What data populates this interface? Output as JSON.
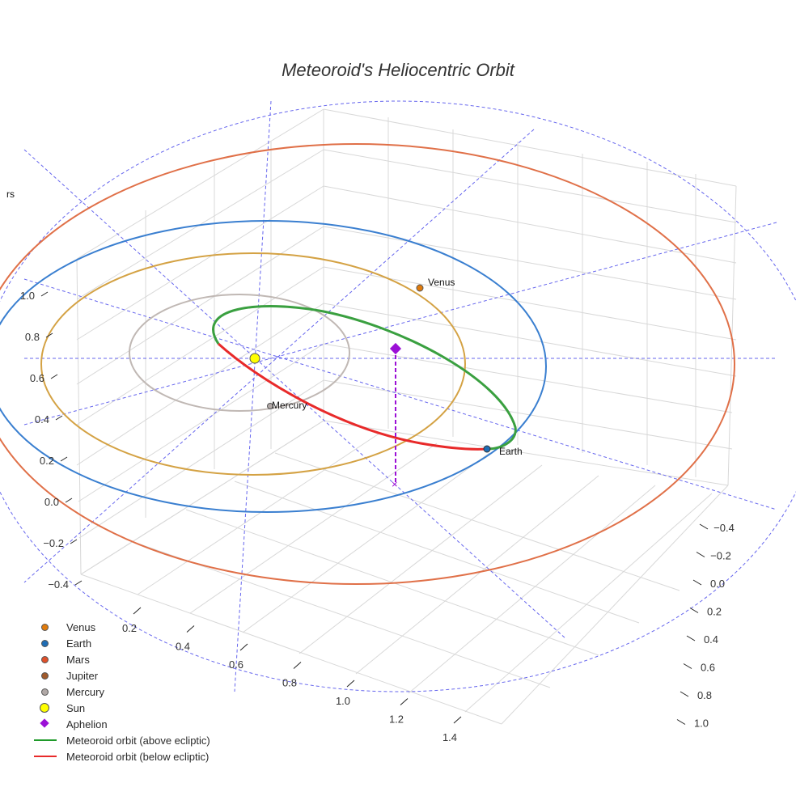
{
  "chart_data": {
    "type": "scatter",
    "title": "Meteoroid's Heliocentric Orbit",
    "axes": {
      "x": {
        "ticks": [
          "0.2",
          "0.4",
          "0.6",
          "0.8",
          "1.0",
          "1.2",
          "1.4"
        ]
      },
      "y": {
        "ticks": [
          "−0.4",
          "−0.2",
          "0.0",
          "0.2",
          "0.4",
          "0.6",
          "0.8",
          "1.0"
        ]
      },
      "z": {
        "ticks": [
          "−0.4",
          "−0.2",
          "0.0",
          "0.2",
          "0.4",
          "0.6",
          "0.8",
          "1.0"
        ]
      }
    },
    "grid": true,
    "legend_position": "bottom-left",
    "series": [
      {
        "name": "Venus",
        "kind": "marker",
        "color": "#e07b0c"
      },
      {
        "name": "Earth",
        "kind": "marker",
        "color": "#1f6db5"
      },
      {
        "name": "Mars",
        "kind": "marker",
        "color": "#e0502a"
      },
      {
        "name": "Jupiter",
        "kind": "marker",
        "color": "#a05a2c"
      },
      {
        "name": "Mercury",
        "kind": "marker",
        "color": "#b0a8a6"
      },
      {
        "name": "Sun",
        "kind": "marker",
        "color": "#ffff00"
      },
      {
        "name": "Aphelion",
        "kind": "diamond",
        "color": "#9b10d6"
      },
      {
        "name": "Meteoroid orbit (above ecliptic)",
        "kind": "line",
        "color": "#1f9a2a"
      },
      {
        "name": "Meteoroid orbit (below ecliptic)",
        "kind": "line",
        "color": "#e82a2a"
      }
    ],
    "annotations": [
      "Venus",
      "Mercury",
      "Earth",
      "rs"
    ],
    "orbit_colors": {
      "mercury": "#c0b8b4",
      "venus": "#d4a244",
      "earth": "#3a7fd0",
      "mars": "#e07048",
      "reference": "#6666ee"
    }
  }
}
